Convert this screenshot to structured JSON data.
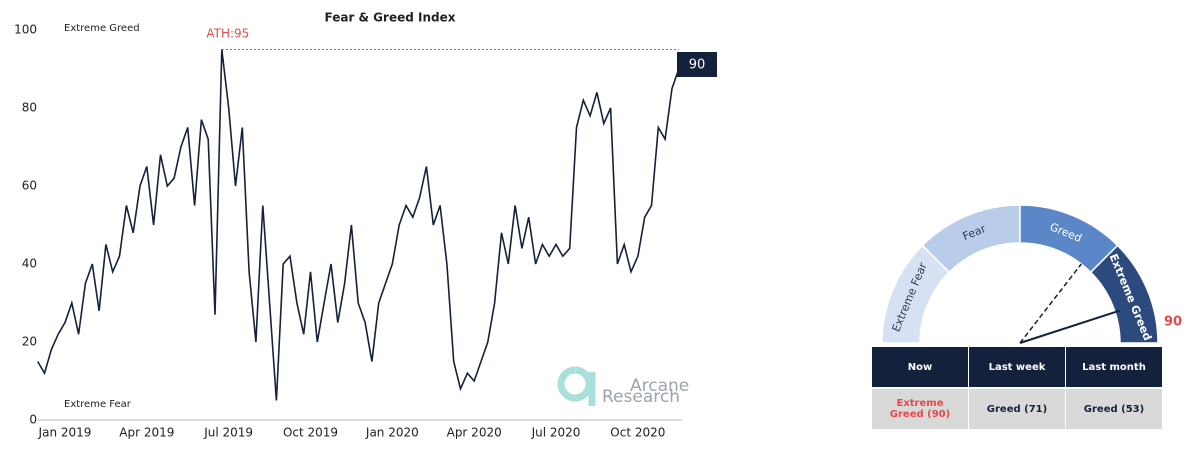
{
  "chart_data": [
    {
      "type": "line",
      "title": "Fear & Greed Index",
      "color": "#14213d",
      "categories": [
        null,
        null,
        null,
        null,
        "Jan 2019",
        null,
        null,
        null,
        null,
        null,
        null,
        null,
        null,
        null,
        null,
        null,
        "Apr 2019",
        null,
        null,
        null,
        null,
        null,
        null,
        null,
        null,
        null,
        null,
        null,
        "Jul 2019",
        null,
        null,
        null,
        null,
        null,
        null,
        null,
        null,
        null,
        null,
        null,
        "Oct 2019",
        null,
        null,
        null,
        null,
        null,
        null,
        null,
        null,
        null,
        null,
        null,
        "Jan 2020",
        null,
        null,
        null,
        null,
        null,
        null,
        null,
        null,
        null,
        null,
        null,
        "Apr 2020",
        null,
        null,
        null,
        null,
        null,
        null,
        null,
        null,
        null,
        null,
        null,
        "Jul 2020",
        null,
        null,
        null,
        null,
        null,
        null,
        null,
        null,
        null,
        null,
        null,
        "Oct 2020",
        null,
        null,
        null,
        null,
        null,
        null
      ],
      "values": [
        15,
        12,
        18,
        22,
        25,
        30,
        22,
        35,
        40,
        28,
        45,
        38,
        42,
        55,
        48,
        60,
        65,
        50,
        68,
        60,
        62,
        70,
        75,
        55,
        77,
        72,
        27,
        95,
        80,
        60,
        75,
        38,
        20,
        55,
        30,
        5,
        40,
        42,
        30,
        22,
        38,
        20,
        30,
        40,
        25,
        35,
        50,
        30,
        25,
        15,
        30,
        35,
        40,
        50,
        55,
        52,
        57,
        65,
        50,
        55,
        40,
        15,
        8,
        12,
        10,
        15,
        20,
        30,
        48,
        40,
        55,
        44,
        52,
        40,
        45,
        42,
        45,
        42,
        44,
        75,
        82,
        78,
        84,
        76,
        80,
        40,
        45,
        38,
        42,
        52,
        55,
        75,
        72,
        85,
        90
      ],
      "ylim": [
        0,
        100
      ],
      "yticks": [
        0,
        20,
        40,
        60,
        80,
        100
      ],
      "annotations": {
        "top": "Extreme Greed",
        "bottom": "Extreme Fear",
        "ath": "ATH:95"
      },
      "ath_color": "#e8474c"
    },
    {
      "type": "gauge",
      "segments": [
        "Extreme Fear",
        "Fear",
        "Greed",
        "Extreme Greed"
      ],
      "bounds": [
        0,
        25,
        50,
        75,
        100
      ],
      "colors": [
        "#d6e2f3",
        "#b9cdea",
        "#5b87c9",
        "#2d4a7f"
      ],
      "value": 90,
      "last_week": 71,
      "value_color": "#e8474c"
    }
  ],
  "table": {
    "headers": [
      "Now",
      "Last week",
      "Last month"
    ],
    "rows": [
      [
        "Extreme Greed (90)",
        "Greed (71)",
        "Greed (53)"
      ]
    ]
  },
  "watermark": [
    "Arcane",
    "Research"
  ]
}
